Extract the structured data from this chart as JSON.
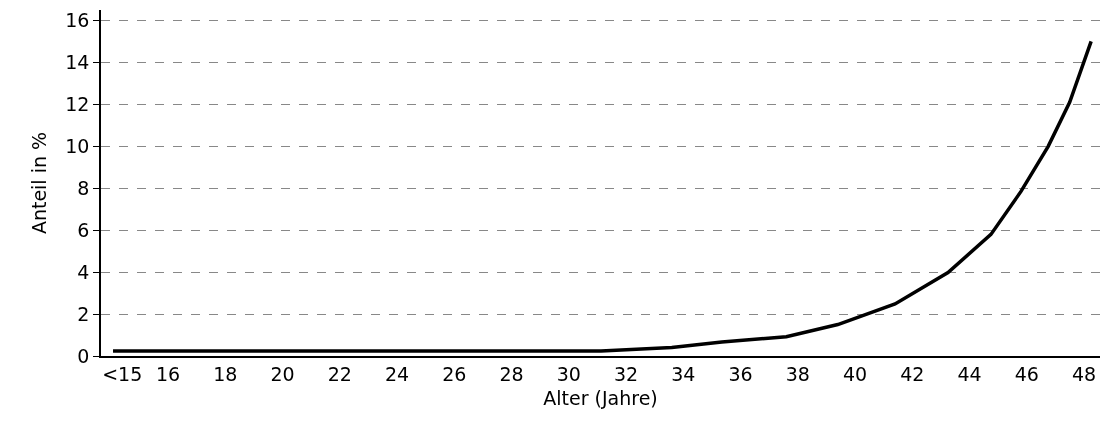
{
  "chart_data": {
    "type": "line",
    "xlabel": "Alter (Jahre)",
    "ylabel": "Anteil in %",
    "x": [
      14.08,
      31.13,
      33.6,
      35.35,
      37.6,
      39.4,
      41.4,
      43.25,
      44.75,
      45.8,
      46.75,
      47.5,
      48.25
    ],
    "series": [
      {
        "color": "#000000",
        "values": [
          0.24,
          0.24,
          0.4,
          0.67,
          0.92,
          1.5,
          2.48,
          3.98,
          5.8,
          7.85,
          10.0,
          12.1,
          15.0
        ]
      }
    ],
    "xlim": [
      13.66,
      48.56
    ],
    "xticks": [
      {
        "value": 14.4,
        "label": "<15"
      },
      16,
      18,
      20,
      22,
      24,
      26,
      28,
      30,
      32,
      34,
      36,
      38,
      40,
      42,
      44,
      46,
      48
    ],
    "ylim": [
      0,
      16.5
    ],
    "yticks": [
      0,
      2,
      4,
      6,
      8,
      10,
      12,
      14,
      16
    ],
    "grid": "y",
    "line_style": "solid",
    "marker": "none"
  }
}
